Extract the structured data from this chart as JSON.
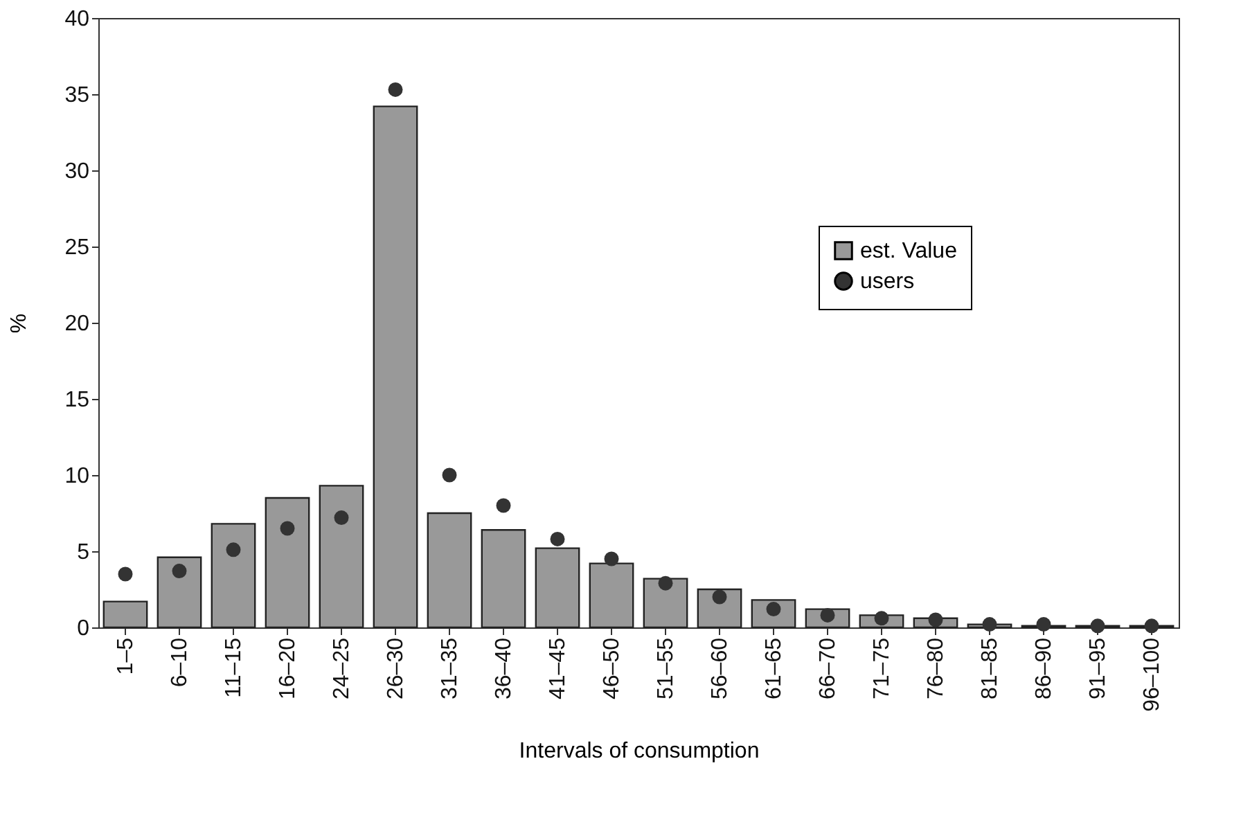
{
  "chart_data": {
    "type": "bar",
    "xlabel": "Intervals of consumption",
    "ylabel": "%",
    "categories": [
      "1–5",
      "6–10",
      "11–15",
      "16–20",
      "24–25",
      "26–30",
      "31–35",
      "36–40",
      "41–45",
      "46–50",
      "51–55",
      "56–60",
      "61–65",
      "66–70",
      "71–75",
      "76–80",
      "81–85",
      "86–90",
      "91–95",
      "96–100"
    ],
    "series": [
      {
        "name": "est. Value",
        "color": "#999999",
        "values": [
          1.7,
          4.6,
          6.8,
          8.5,
          9.3,
          34.2,
          7.5,
          6.4,
          5.2,
          4.2,
          3.2,
          2.5,
          1.8,
          1.2,
          0.8,
          0.6,
          0.2,
          0.1,
          0.1,
          0.1
        ]
      },
      {
        "name": "users",
        "type": "scatter",
        "marker": "circle",
        "color": "#333333",
        "values": [
          3.5,
          3.7,
          5.1,
          6.5,
          7.2,
          35.3,
          10.0,
          8.0,
          5.8,
          4.5,
          2.9,
          2.0,
          1.2,
          0.8,
          0.6,
          0.5,
          0.2,
          0.2,
          0.1,
          0.1
        ]
      }
    ],
    "ylim": [
      0,
      40
    ],
    "yticks": [
      0,
      5,
      10,
      15,
      20,
      25,
      30,
      35,
      40
    ],
    "grid": false,
    "legend": "top right"
  }
}
